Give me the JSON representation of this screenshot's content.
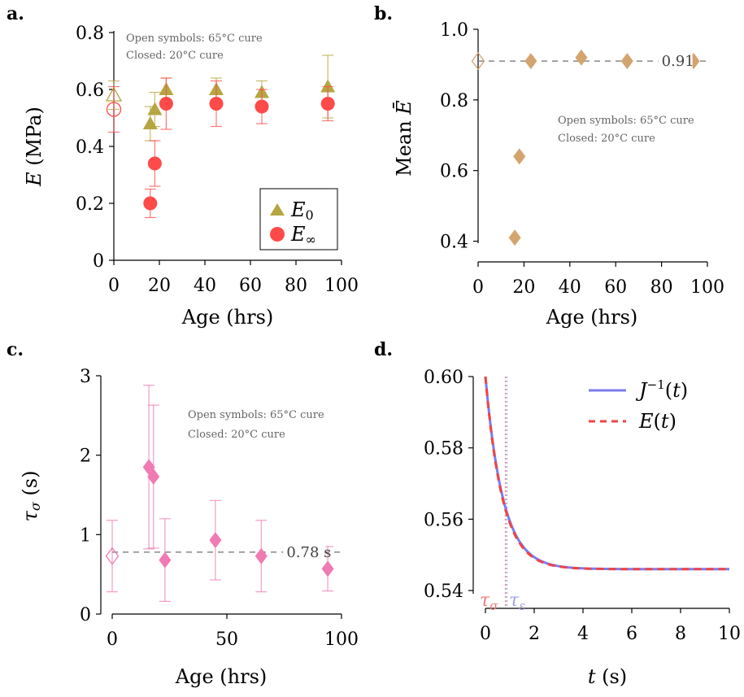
{
  "panel_labels": [
    "a.",
    "b.",
    "c.",
    "d."
  ],
  "chart_data": [
    {
      "type": "scatter",
      "panel": "a.",
      "xlabel": "Age (hrs)",
      "ylabel": "E (MPa)",
      "xlim": [
        0,
        100
      ],
      "ylim": [
        0,
        0.8
      ],
      "xticks": [
        "0",
        "20",
        "40",
        "60",
        "80",
        "100"
      ],
      "yticks": [
        "0",
        "0.2",
        "0.4",
        "0.6",
        "0.8"
      ],
      "annotation": [
        "Open symbols: 65°C cure",
        "Closed: 20°C cure"
      ],
      "legend_position": "bottom-right",
      "series": [
        {
          "name": "E0",
          "color": "#b5a642",
          "marker": "triangle",
          "x": [
            16,
            18,
            23,
            45,
            65,
            94
          ],
          "y": [
            0.48,
            0.53,
            0.6,
            0.6,
            0.59,
            0.61
          ],
          "err": [
            0.06,
            0.06,
            0.04,
            0.04,
            0.04,
            0.11
          ],
          "open": {
            "x": 0,
            "y": 0.58,
            "err": 0.05
          }
        },
        {
          "name": "E∞",
          "color": "#ff4a4a",
          "marker": "circle",
          "x": [
            16,
            18,
            23,
            45,
            65,
            94
          ],
          "y": [
            0.2,
            0.34,
            0.55,
            0.55,
            0.54,
            0.55
          ],
          "err": [
            0.05,
            0.08,
            0.09,
            0.08,
            0.06,
            0.06
          ],
          "open": {
            "x": 0,
            "y": 0.53,
            "err": 0.08
          }
        }
      ]
    },
    {
      "type": "scatter",
      "panel": "b.",
      "xlabel": "Age (hrs)",
      "ylabel": "Mean Ē",
      "xlim": [
        0,
        100
      ],
      "ylim": [
        0.3,
        1.0
      ],
      "xticks": [
        "0",
        "20",
        "40",
        "60",
        "80",
        "100"
      ],
      "yticks": [
        "0.4",
        "0.6",
        "0.8",
        "1.0"
      ],
      "annotation": [
        "Open symbols: 65°C cure",
        "Closed: 20°C cure"
      ],
      "reference_line": {
        "y": 0.91,
        "label": "0.91"
      },
      "series": [
        {
          "color": "#d4a46e",
          "marker": "diamond",
          "x": [
            16,
            18,
            23,
            45,
            65,
            94
          ],
          "y": [
            0.41,
            0.64,
            0.91,
            0.92,
            0.91,
            0.91
          ],
          "open": {
            "x": 0,
            "y": 0.91
          }
        }
      ]
    },
    {
      "type": "scatter",
      "panel": "c.",
      "xlabel": "Age (hrs)",
      "ylabel": "τσ (s)",
      "xlim": [
        0,
        100
      ],
      "ylim": [
        0,
        3
      ],
      "xticks": [
        "0",
        "50",
        "100"
      ],
      "yticks": [
        "0",
        "1",
        "2",
        "3"
      ],
      "annotation": [
        "Open symbols: 65°C cure",
        "Closed: 20°C cure"
      ],
      "reference_line": {
        "y": 0.78,
        "label": "0.78 s"
      },
      "series": [
        {
          "color": "#f07ab4",
          "marker": "diamond",
          "x": [
            16,
            18,
            23,
            45,
            65,
            94
          ],
          "y": [
            1.85,
            1.73,
            0.68,
            0.93,
            0.73,
            0.57
          ],
          "err": [
            1.03,
            0.9,
            0.52,
            0.5,
            0.45,
            0.28
          ],
          "open": {
            "x": 0,
            "y": 0.73,
            "err": 0.45
          }
        }
      ]
    },
    {
      "type": "line",
      "panel": "d.",
      "xlabel": "t (s)",
      "xlim": [
        0,
        10
      ],
      "ylim": [
        0.535,
        0.6
      ],
      "xticks": [
        "0",
        "2",
        "4",
        "6",
        "8",
        "10"
      ],
      "yticks": [
        "0.54",
        "0.56",
        "0.58",
        "0.60"
      ],
      "legend_position": "top-right",
      "series": [
        {
          "name": "J⁻¹(t)",
          "color": "#7b7bf0",
          "style": "solid",
          "model": {
            "a": 0.546,
            "b": 0.054,
            "tau": 0.72
          }
        },
        {
          "name": "E(t)",
          "color": "#ee4444",
          "style": "dashed",
          "model": {
            "a": 0.546,
            "b": 0.054,
            "tau": 0.7
          }
        }
      ],
      "markers": [
        {
          "label": "τσ",
          "x": 0.82,
          "color": "#f07a7a"
        },
        {
          "label": "τε",
          "x": 0.88,
          "color": "#a0a0f0"
        }
      ]
    }
  ]
}
